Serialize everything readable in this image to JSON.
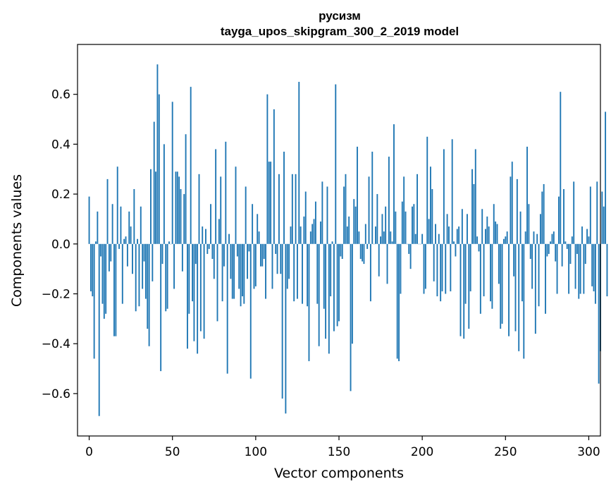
{
  "chart_data": {
    "type": "bar",
    "title": "русизм",
    "subtitle": "tayga_upos_skipgram_300_2_2019 model",
    "xlabel": "Vector components",
    "ylabel": "Components values",
    "xlim": [
      -7,
      307
    ],
    "ylim": [
      -0.77,
      0.8
    ],
    "xticks": [
      0,
      50,
      100,
      150,
      200,
      250,
      300
    ],
    "yticks": [
      -0.6,
      -0.4,
      -0.2,
      0.0,
      0.2,
      0.4,
      0.6
    ],
    "ytick_labels": [
      "−0.6",
      "−0.4",
      "−0.2",
      "0.0",
      "0.2",
      "0.4",
      "0.6"
    ],
    "bar_color": "#1f77b4",
    "grid": false,
    "values": [
      0.19,
      -0.19,
      -0.21,
      -0.46,
      0.01,
      0.13,
      -0.69,
      -0.05,
      -0.24,
      -0.3,
      -0.28,
      0.26,
      -0.11,
      -0.07,
      0.16,
      -0.37,
      -0.37,
      0.31,
      -0.02,
      0.15,
      -0.24,
      0.02,
      0.03,
      -0.09,
      0.13,
      0.07,
      -0.12,
      0.22,
      -0.27,
      0.02,
      -0.25,
      0.15,
      -0.18,
      -0.07,
      -0.22,
      -0.34,
      -0.41,
      0.3,
      -0.15,
      0.49,
      0.29,
      0.72,
      0.6,
      -0.51,
      -0.08,
      0.4,
      -0.27,
      -0.26,
      0.01,
      0.0,
      0.57,
      -0.18,
      0.29,
      0.29,
      0.27,
      0.22,
      -0.11,
      0.2,
      0.44,
      -0.42,
      -0.28,
      0.63,
      -0.23,
      -0.39,
      -0.08,
      -0.44,
      0.28,
      -0.35,
      0.07,
      -0.38,
      0.06,
      -0.04,
      -0.02,
      0.16,
      -0.06,
      -0.14,
      0.38,
      -0.31,
      0.1,
      0.27,
      -0.23,
      -0.09,
      0.41,
      -0.52,
      0.04,
      -0.14,
      -0.22,
      -0.22,
      0.31,
      -0.05,
      -0.18,
      -0.25,
      -0.21,
      -0.24,
      0.23,
      -0.14,
      -0.03,
      -0.54,
      0.16,
      -0.18,
      -0.17,
      0.12,
      0.05,
      -0.09,
      -0.09,
      -0.06,
      -0.22,
      0.6,
      0.33,
      0.33,
      -0.18,
      0.54,
      -0.04,
      -0.12,
      0.28,
      -0.12,
      -0.62,
      0.37,
      -0.68,
      -0.18,
      -0.14,
      0.07,
      0.28,
      -0.23,
      0.28,
      -0.22,
      0.65,
      0.07,
      -0.24,
      0.11,
      0.21,
      -0.25,
      -0.47,
      0.05,
      0.08,
      0.1,
      0.17,
      -0.24,
      -0.41,
      0.09,
      0.25,
      -0.26,
      -0.38,
      0.23,
      -0.44,
      -0.21,
      0.01,
      -0.35,
      0.64,
      -0.33,
      -0.31,
      -0.05,
      -0.06,
      0.23,
      0.28,
      0.07,
      0.11,
      -0.59,
      -0.4,
      0.18,
      0.15,
      0.39,
      0.05,
      -0.06,
      -0.07,
      -0.08,
      0.08,
      -0.02,
      0.27,
      -0.23,
      0.37,
      0.0,
      0.07,
      0.2,
      -0.13,
      0.03,
      0.12,
      0.05,
      0.15,
      -0.16,
      0.35,
      0.05,
      0.01,
      0.48,
      0.13,
      -0.46,
      -0.47,
      -0.2,
      0.17,
      0.27,
      0.13,
      0.0,
      -0.04,
      -0.1,
      0.15,
      0.16,
      0.04,
      0.28,
      0.0,
      0.0,
      0.04,
      -0.2,
      -0.18,
      0.43,
      0.1,
      0.31,
      0.22,
      -0.15,
      0.08,
      -0.21,
      0.04,
      -0.23,
      -0.19,
      0.38,
      -0.2,
      0.12,
      0.07,
      -0.19,
      0.42,
      0.01,
      -0.05,
      0.06,
      0.07,
      -0.37,
      0.14,
      -0.38,
      -0.24,
      0.12,
      -0.34,
      -0.19,
      0.3,
      0.24,
      0.38,
      0.03,
      -0.03,
      -0.28,
      0.14,
      -0.21,
      0.06,
      0.11,
      0.07,
      -0.23,
      -0.26,
      0.16,
      0.09,
      0.08,
      -0.16,
      -0.34,
      -0.32,
      0.02,
      0.03,
      0.05,
      -0.37,
      0.27,
      0.33,
      -0.13,
      -0.35,
      0.26,
      -0.43,
      0.13,
      -0.23,
      -0.46,
      0.05,
      0.39,
      0.16,
      -0.06,
      -0.18,
      0.05,
      -0.36,
      0.04,
      -0.25,
      0.12,
      0.21,
      0.24,
      -0.28,
      -0.05,
      -0.04,
      0.01,
      0.04,
      0.05,
      -0.07,
      -0.2,
      0.19,
      0.61,
      -0.09,
      0.22,
      0.01,
      -0.02,
      -0.2,
      -0.08,
      0.03,
      0.25,
      -0.18,
      -0.04,
      -0.22,
      -0.2,
      0.07,
      -0.2,
      -0.08,
      0.06,
      0.03,
      0.23,
      -0.17,
      -0.19,
      -0.24,
      0.25,
      -0.56,
      -0.43,
      0.21,
      0.15,
      0.53,
      -0.21
    ]
  }
}
